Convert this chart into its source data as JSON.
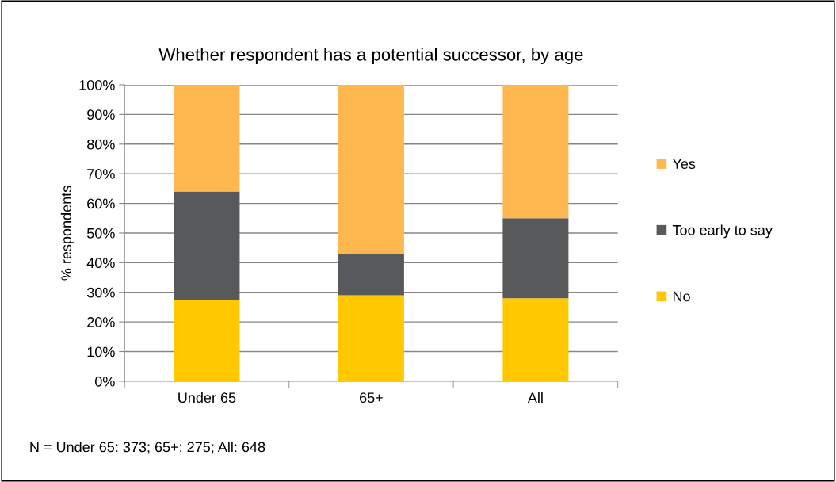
{
  "chart_data": {
    "type": "bar",
    "title": "Whether respondent has a potential successor, by age",
    "ylabel": "% respondents",
    "categories": [
      "Under 65",
      "65+",
      "All"
    ],
    "stacked": true,
    "series": [
      {
        "name": "No",
        "color": "#ffc800",
        "values": [
          27.5,
          29,
          28
        ]
      },
      {
        "name": "Too early to say",
        "color": "#58595b",
        "values": [
          36.5,
          14,
          27
        ]
      },
      {
        "name": "Yes",
        "color": "#ffb74f",
        "values": [
          36,
          57,
          45
        ]
      }
    ],
    "ylim": [
      0,
      100
    ],
    "yticks": [
      {
        "value": 0,
        "label": "0%"
      },
      {
        "value": 10,
        "label": "10%"
      },
      {
        "value": 20,
        "label": "20%"
      },
      {
        "value": 30,
        "label": "30%"
      },
      {
        "value": 40,
        "label": "40%"
      },
      {
        "value": 50,
        "label": "50%"
      },
      {
        "value": 60,
        "label": "60%"
      },
      {
        "value": 70,
        "label": "70%"
      },
      {
        "value": 80,
        "label": "80%"
      },
      {
        "value": 90,
        "label": "90%"
      },
      {
        "value": 100,
        "label": "100%"
      }
    ],
    "grid": "y",
    "legend": "right",
    "annotations": [
      "N = Under 65: 373; 65+: 275; All: 648"
    ]
  }
}
